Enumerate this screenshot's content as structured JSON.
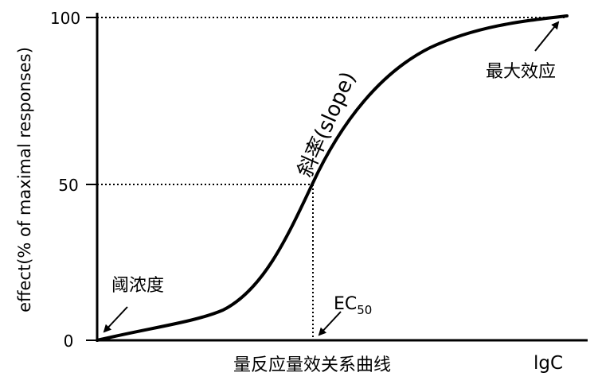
{
  "diagram": {
    "caption": "量反应量效关系曲线",
    "y_axis": {
      "label": "effect(% of maximal responses)",
      "ticks": [
        "0",
        "50",
        "100"
      ]
    },
    "x_axis": {
      "label": "lgC"
    },
    "annotations": {
      "max_effect": "最大效应",
      "slope": "斜率(slope)",
      "threshold": "阈浓度",
      "ec50_main": "EC",
      "ec50_sub": "50"
    },
    "colors": {
      "ink": "#000000",
      "background": "#ffffff"
    }
  }
}
